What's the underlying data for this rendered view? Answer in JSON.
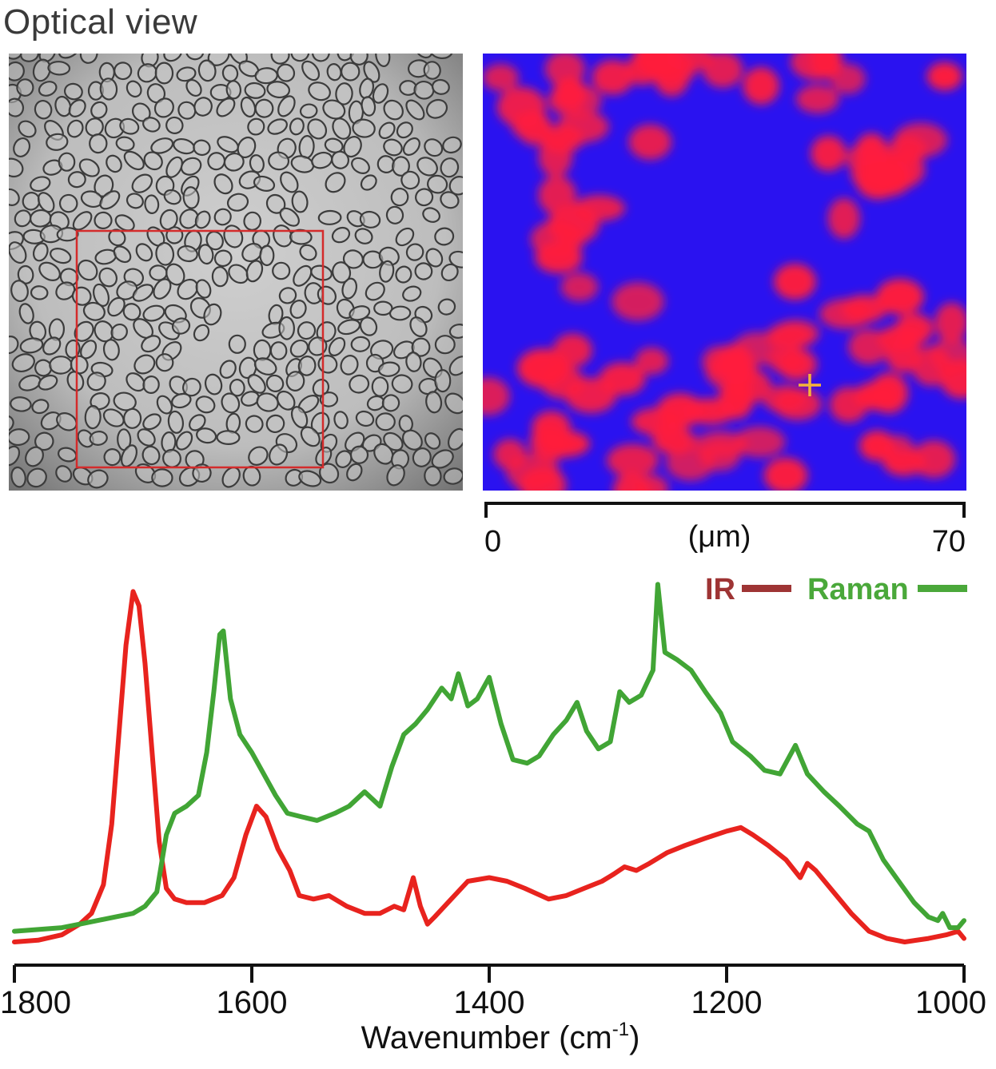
{
  "title": "Optical view",
  "scale_bar": {
    "start_label": "0",
    "unit_label": "(μm)",
    "end_label": "70",
    "range_um": [
      0,
      70
    ]
  },
  "colors": {
    "ir": "#e8231e",
    "raman": "#41a535",
    "ir_legend": "#9e3434",
    "raman_legend": "#4aa83a",
    "roi_box": "#d42b2b",
    "map_background": "#2a12f0",
    "map_cells": "#ff1e3c",
    "marker": "#f5b43a"
  },
  "chart_data": {
    "type": "line",
    "xlabel": "Wavenumber (cm",
    "xlabel_sup": "-1",
    "xlabel_close": ")",
    "xlim": [
      1800,
      1000
    ],
    "x_reversed": true,
    "ylabel": "",
    "yaxis_shown": false,
    "ylim": [
      0,
      1.05
    ],
    "x_ticks": [
      1800,
      1600,
      1400,
      1200,
      1000
    ],
    "x_tick_labels": [
      "1800",
      "1600",
      "1400",
      "1200",
      "1000"
    ],
    "legend": {
      "placement": "top-right"
    },
    "series": [
      {
        "name": "IR",
        "color": "#e8231e",
        "points": [
          [
            1800,
            0.02
          ],
          [
            1780,
            0.025
          ],
          [
            1760,
            0.04
          ],
          [
            1745,
            0.07
          ],
          [
            1735,
            0.1
          ],
          [
            1725,
            0.18
          ],
          [
            1718,
            0.35
          ],
          [
            1712,
            0.6
          ],
          [
            1706,
            0.85
          ],
          [
            1700,
            1.0
          ],
          [
            1695,
            0.96
          ],
          [
            1690,
            0.8
          ],
          [
            1684,
            0.55
          ],
          [
            1678,
            0.3
          ],
          [
            1672,
            0.17
          ],
          [
            1665,
            0.14
          ],
          [
            1655,
            0.13
          ],
          [
            1640,
            0.13
          ],
          [
            1625,
            0.15
          ],
          [
            1615,
            0.2
          ],
          [
            1605,
            0.32
          ],
          [
            1596,
            0.4
          ],
          [
            1588,
            0.37
          ],
          [
            1578,
            0.28
          ],
          [
            1568,
            0.22
          ],
          [
            1560,
            0.15
          ],
          [
            1548,
            0.14
          ],
          [
            1535,
            0.15
          ],
          [
            1520,
            0.12
          ],
          [
            1505,
            0.1
          ],
          [
            1492,
            0.1
          ],
          [
            1480,
            0.12
          ],
          [
            1472,
            0.11
          ],
          [
            1464,
            0.2
          ],
          [
            1458,
            0.12
          ],
          [
            1452,
            0.07
          ],
          [
            1446,
            0.09
          ],
          [
            1432,
            0.14
          ],
          [
            1418,
            0.19
          ],
          [
            1400,
            0.2
          ],
          [
            1385,
            0.19
          ],
          [
            1370,
            0.17
          ],
          [
            1350,
            0.14
          ],
          [
            1335,
            0.15
          ],
          [
            1320,
            0.17
          ],
          [
            1305,
            0.19
          ],
          [
            1295,
            0.21
          ],
          [
            1286,
            0.23
          ],
          [
            1276,
            0.22
          ],
          [
            1265,
            0.24
          ],
          [
            1250,
            0.27
          ],
          [
            1235,
            0.29
          ],
          [
            1218,
            0.31
          ],
          [
            1200,
            0.33
          ],
          [
            1188,
            0.34
          ],
          [
            1178,
            0.32
          ],
          [
            1165,
            0.29
          ],
          [
            1150,
            0.25
          ],
          [
            1138,
            0.2
          ],
          [
            1132,
            0.24
          ],
          [
            1125,
            0.22
          ],
          [
            1110,
            0.16
          ],
          [
            1095,
            0.1
          ],
          [
            1080,
            0.05
          ],
          [
            1065,
            0.03
          ],
          [
            1050,
            0.02
          ],
          [
            1030,
            0.03
          ],
          [
            1015,
            0.04
          ],
          [
            1005,
            0.05
          ],
          [
            1000,
            0.03
          ]
        ]
      },
      {
        "name": "Raman",
        "color": "#41a535",
        "points": [
          [
            1800,
            0.05
          ],
          [
            1780,
            0.055
          ],
          [
            1760,
            0.06
          ],
          [
            1745,
            0.07
          ],
          [
            1730,
            0.08
          ],
          [
            1715,
            0.09
          ],
          [
            1700,
            0.1
          ],
          [
            1690,
            0.12
          ],
          [
            1680,
            0.16
          ],
          [
            1672,
            0.32
          ],
          [
            1665,
            0.38
          ],
          [
            1655,
            0.4
          ],
          [
            1645,
            0.43
          ],
          [
            1638,
            0.55
          ],
          [
            1632,
            0.72
          ],
          [
            1627,
            0.88
          ],
          [
            1624,
            0.89
          ],
          [
            1618,
            0.7
          ],
          [
            1610,
            0.6
          ],
          [
            1600,
            0.55
          ],
          [
            1590,
            0.49
          ],
          [
            1580,
            0.43
          ],
          [
            1570,
            0.38
          ],
          [
            1558,
            0.37
          ],
          [
            1545,
            0.36
          ],
          [
            1530,
            0.38
          ],
          [
            1518,
            0.4
          ],
          [
            1505,
            0.44
          ],
          [
            1492,
            0.4
          ],
          [
            1482,
            0.51
          ],
          [
            1472,
            0.6
          ],
          [
            1462,
            0.63
          ],
          [
            1452,
            0.67
          ],
          [
            1440,
            0.73
          ],
          [
            1432,
            0.7
          ],
          [
            1426,
            0.77
          ],
          [
            1418,
            0.68
          ],
          [
            1410,
            0.7
          ],
          [
            1400,
            0.76
          ],
          [
            1390,
            0.63
          ],
          [
            1380,
            0.53
          ],
          [
            1368,
            0.52
          ],
          [
            1358,
            0.54
          ],
          [
            1346,
            0.6
          ],
          [
            1335,
            0.64
          ],
          [
            1326,
            0.69
          ],
          [
            1318,
            0.61
          ],
          [
            1308,
            0.56
          ],
          [
            1298,
            0.58
          ],
          [
            1290,
            0.72
          ],
          [
            1282,
            0.69
          ],
          [
            1272,
            0.71
          ],
          [
            1262,
            0.78
          ],
          [
            1258,
            1.02
          ],
          [
            1252,
            0.83
          ],
          [
            1242,
            0.81
          ],
          [
            1230,
            0.78
          ],
          [
            1218,
            0.72
          ],
          [
            1205,
            0.66
          ],
          [
            1195,
            0.58
          ],
          [
            1180,
            0.54
          ],
          [
            1168,
            0.5
          ],
          [
            1155,
            0.49
          ],
          [
            1142,
            0.57
          ],
          [
            1132,
            0.49
          ],
          [
            1118,
            0.44
          ],
          [
            1105,
            0.4
          ],
          [
            1090,
            0.35
          ],
          [
            1080,
            0.33
          ],
          [
            1068,
            0.25
          ],
          [
            1055,
            0.19
          ],
          [
            1042,
            0.13
          ],
          [
            1030,
            0.09
          ],
          [
            1022,
            0.08
          ],
          [
            1018,
            0.1
          ],
          [
            1012,
            0.06
          ],
          [
            1005,
            0.06
          ],
          [
            1000,
            0.08
          ]
        ]
      }
    ]
  }
}
